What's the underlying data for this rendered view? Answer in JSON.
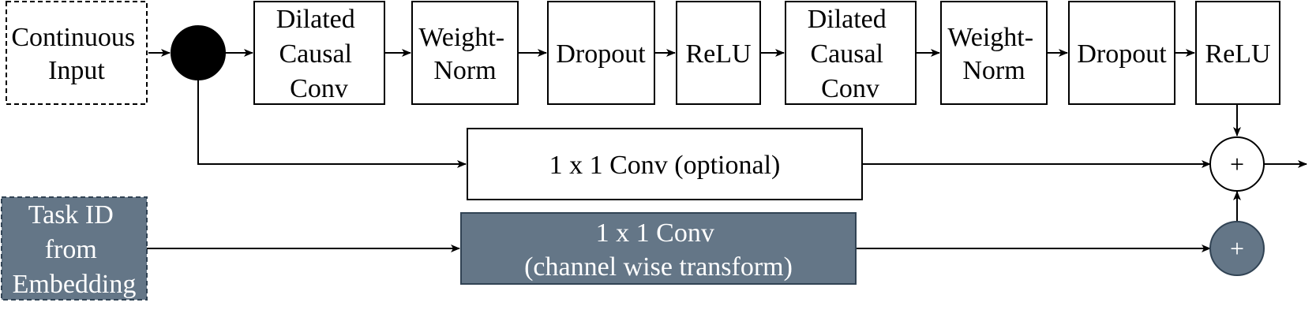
{
  "colors": {
    "task_fill": "#647687",
    "task_stroke": "#314354",
    "junction": "#000000",
    "task_text": "#ffffff"
  },
  "nodes": {
    "continuous_input": [
      "Continuous",
      "Input"
    ],
    "dilated_conv_1": [
      "Dilated",
      "Causal",
      "Conv"
    ],
    "weight_norm_1": [
      "Weight-",
      "Norm"
    ],
    "dropout_1": [
      "Dropout"
    ],
    "relu_1": [
      "ReLU"
    ],
    "dilated_conv_2": [
      "Dilated",
      "Causal",
      "Conv"
    ],
    "weight_norm_2": [
      "Weight-",
      "Norm"
    ],
    "dropout_2": [
      "Dropout"
    ],
    "relu_2": [
      "ReLU"
    ],
    "conv_optional": [
      "1 x 1 Conv (optional)"
    ],
    "task_id": [
      "Task ID",
      "from",
      "Embedding"
    ],
    "conv_channel": [
      "1 x 1 Conv",
      "(channel wise transform)"
    ],
    "sum_main": [
      "+"
    ],
    "sum_task": [
      "+"
    ]
  }
}
